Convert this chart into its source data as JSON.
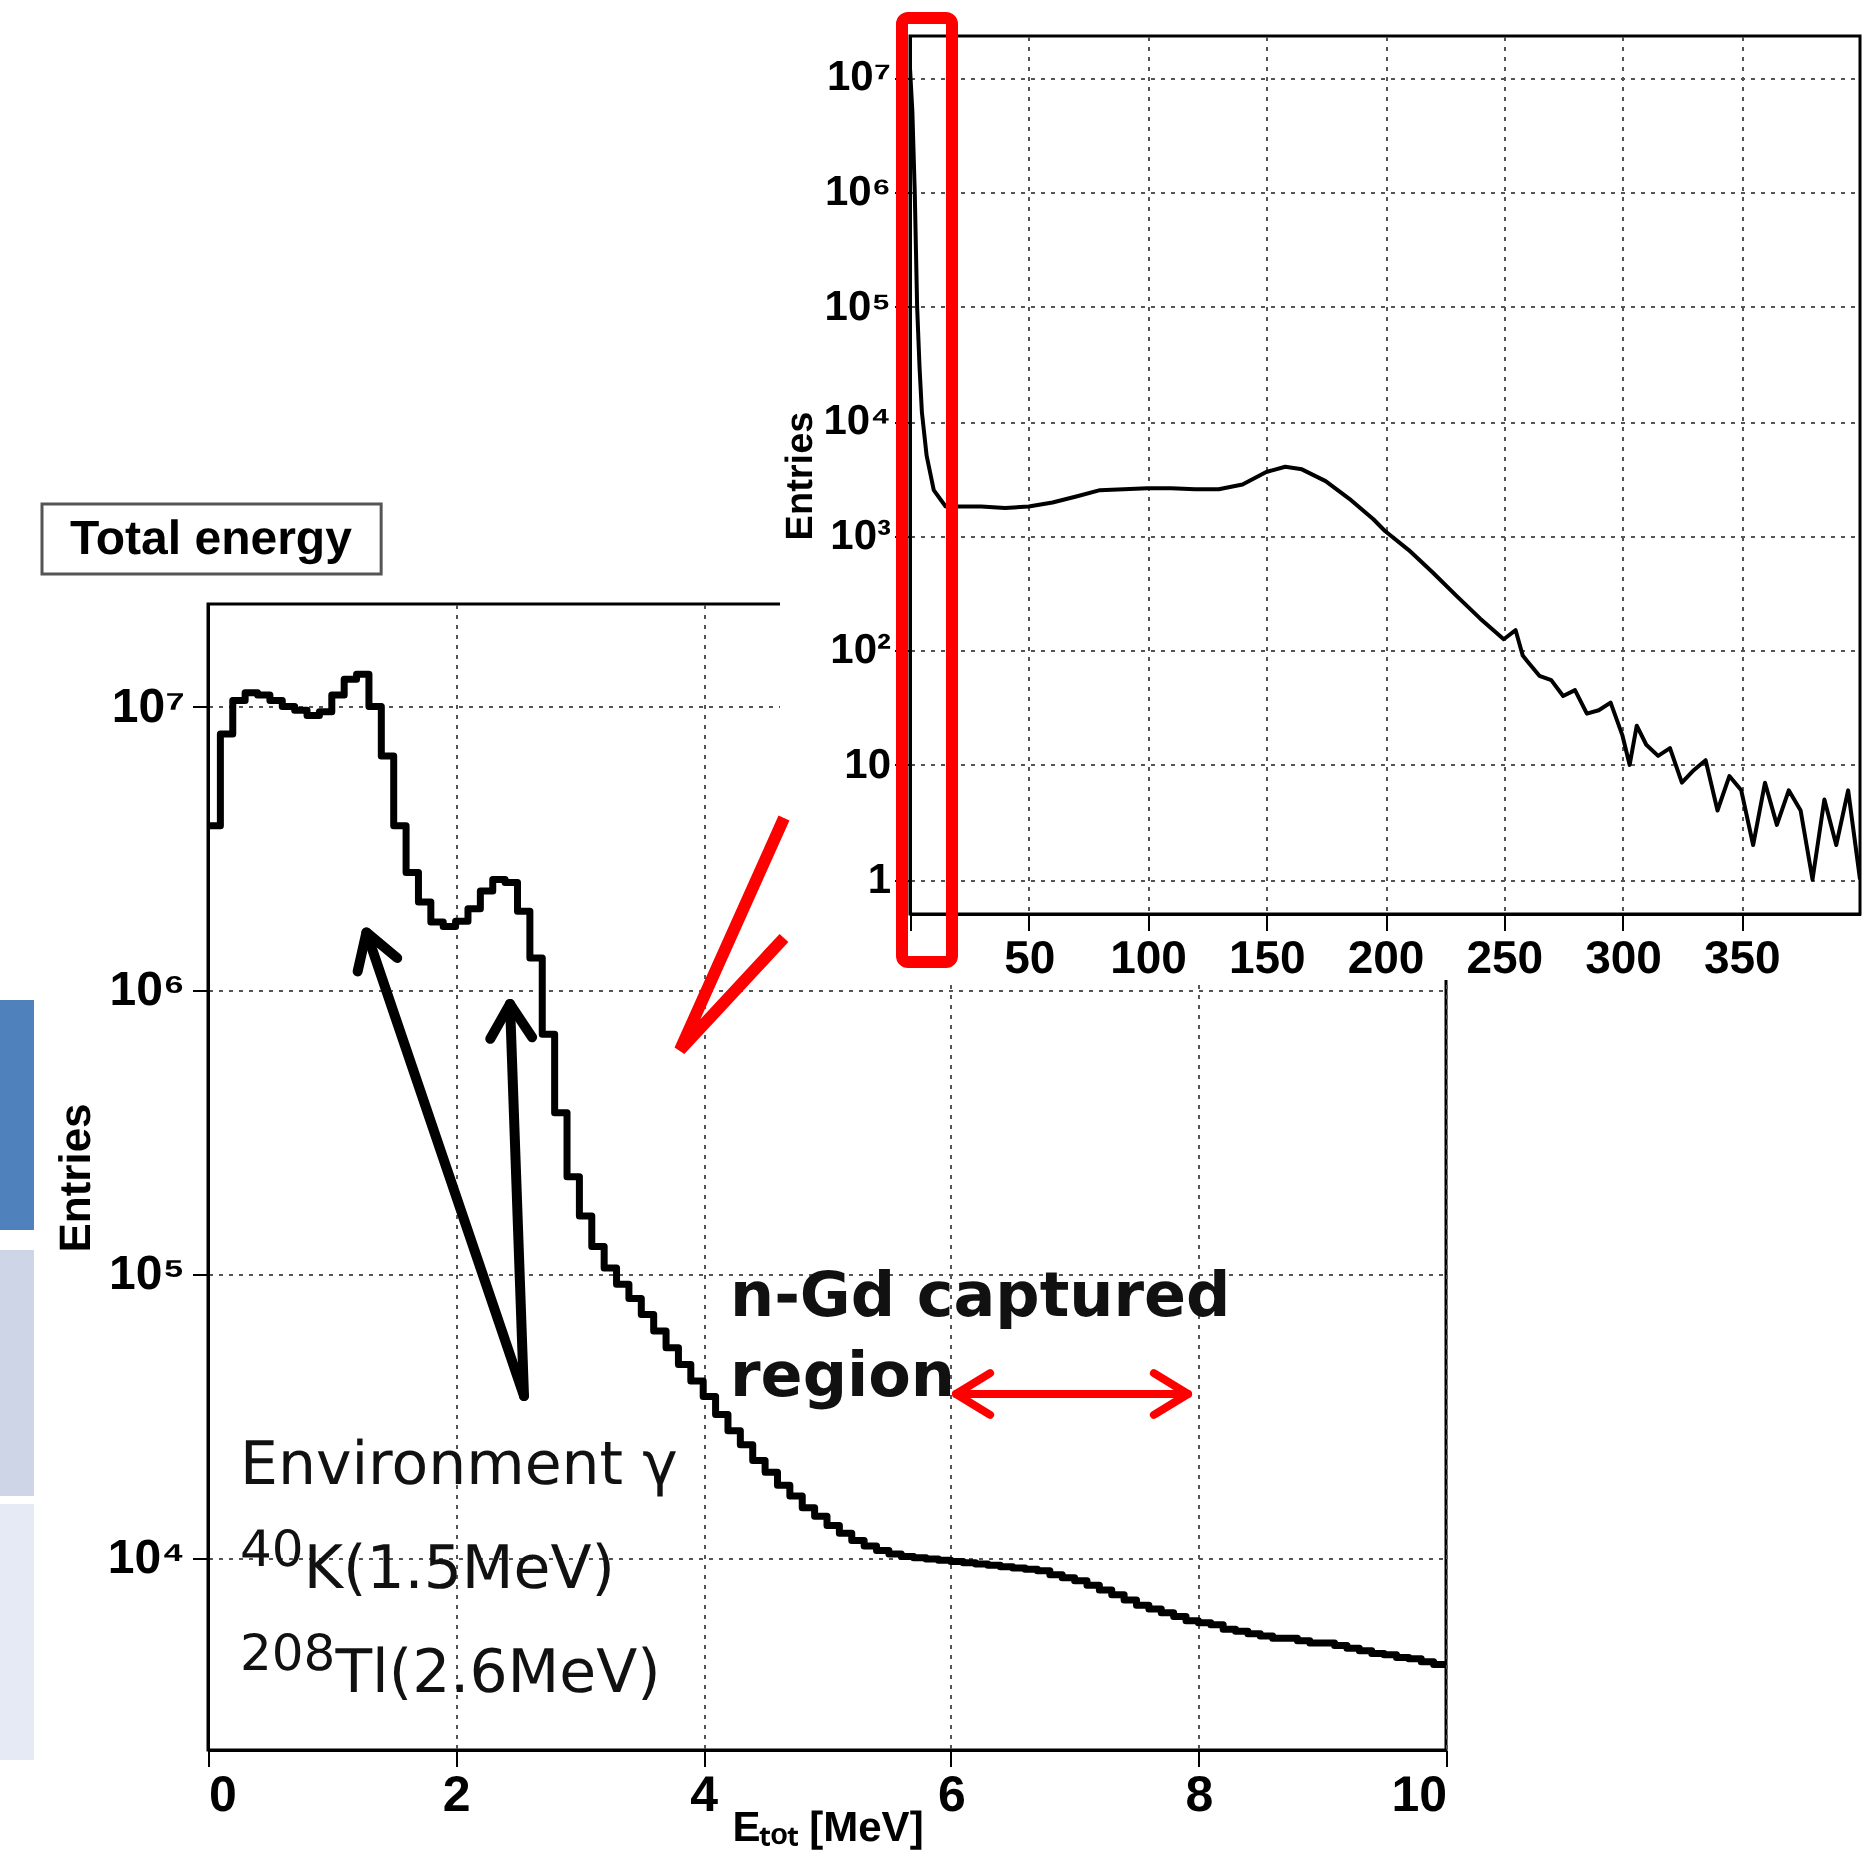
{
  "chart_data": [
    {
      "type": "histogram",
      "title": "Total energy",
      "xlabel": "Eₜₒₜ [MeV]",
      "ylabel": "Entries",
      "color": "#000000",
      "bins": [
        0,
        0.1,
        0.2,
        0.3,
        0.4,
        0.5,
        0.6,
        0.7,
        0.8,
        0.9,
        1,
        1.1,
        1.2,
        1.3,
        1.4,
        1.5,
        1.6,
        1.7,
        1.8,
        1.9,
        2,
        2.1,
        2.2,
        2.3,
        2.4,
        2.5,
        2.6,
        2.7,
        2.8,
        2.9,
        3,
        3.1,
        3.2,
        3.3,
        3.4,
        3.5,
        3.6,
        3.7,
        3.8,
        3.9,
        4,
        4.1,
        4.2,
        4.3,
        4.4,
        4.5,
        4.6,
        4.7,
        4.8,
        4.9,
        5,
        5.1,
        5.2,
        5.3,
        5.4,
        5.5,
        5.6,
        5.7,
        5.8,
        5.9,
        6,
        6.1,
        6.2,
        6.3,
        6.4,
        6.5,
        6.6,
        6.7,
        6.8,
        6.9,
        7,
        7.1,
        7.2,
        7.3,
        7.4,
        7.5,
        7.6,
        7.7,
        7.8,
        7.9,
        8,
        8.1,
        8.2,
        8.3,
        8.4,
        8.5,
        8.6,
        8.7,
        8.8,
        8.9,
        9,
        9.1,
        9.2,
        9.3,
        9.4,
        9.5,
        9.6,
        9.7,
        9.8,
        9.9,
        10
      ],
      "values": [
        3800000.0,
        8000000.0,
        10500000.0,
        11200000.0,
        11000000.0,
        10500000.0,
        10000000.0,
        9700000.0,
        9300000.0,
        9600000.0,
        11000000.0,
        12500000.0,
        13000000.0,
        10000000.0,
        6700000.0,
        3800000.0,
        2600000.0,
        2050000.0,
        1740000.0,
        1680000.0,
        1750000.0,
        1940000.0,
        2240000.0,
        2460000.0,
        2400000.0,
        1900000.0,
        1300000.0,
        700000.0,
        370000.0,
        220000.0,
        160000.0,
        125000.0,
        105000.0,
        92000.0,
        82000.0,
        72000.0,
        63000.0,
        55000.0,
        48000.0,
        42000.0,
        37000.0,
        32000.0,
        28000.0,
        25000.0,
        22000.0,
        20000.0,
        18000.0,
        16500.0,
        15000.0,
        14000.0,
        13000.0,
        12200.0,
        11500.0,
        11000.0,
        10600.0,
        10300.0,
        10100.0,
        10000.0,
        9900.0,
        9800.0,
        9700.0,
        9600.0,
        9500.0,
        9400.0,
        9300.0,
        9200.0,
        9100.0,
        9000.0,
        8700.0,
        8500.0,
        8300.0,
        8000.0,
        7700.0,
        7400.0,
        7100.0,
        6800.0,
        6600.0,
        6400.0,
        6200.0,
        6000.0,
        5900.0,
        5800.0,
        5600.0,
        5500.0,
        5400.0,
        5300.0,
        5200.0,
        5200.0,
        5100.0,
        5000.0,
        5000.0,
        4900.0,
        4800.0,
        4700.0,
        4600.0,
        4550.0,
        4450.0,
        4400.0,
        4300.0,
        4200.0
      ],
      "xlim": [
        0,
        10
      ],
      "xticks": [
        0,
        2,
        4,
        6,
        8,
        10
      ],
      "ylim": [
        2100,
        23000000.0
      ],
      "yticks": [
        {
          "value": 10000,
          "label": "10⁴"
        },
        {
          "value": 100000,
          "label": "10⁵"
        },
        {
          "value": 1000000,
          "label": "10⁶"
        },
        {
          "value": 10000000,
          "label": "10⁷"
        }
      ],
      "log": true,
      "grid": true,
      "annotations": [
        {
          "text": "Environment γ",
          "x": 1.28,
          "y": 1600000.0
        },
        "$^{40}$K(1.5MeV)",
        "$^{208}$Tl(2.6MeV)",
        "n-Gd captured region"
      ]
    },
    {
      "type": "line",
      "ylabel": "Entries",
      "color": "#000000",
      "x": [
        0,
        1,
        2,
        3,
        4,
        5,
        7,
        10,
        15,
        20,
        30,
        40,
        50,
        60,
        70,
        80,
        90,
        100,
        110,
        120,
        130,
        140,
        150,
        158,
        165,
        175,
        185,
        195,
        200,
        210,
        220,
        230,
        240,
        250,
        255,
        258,
        260,
        265,
        270,
        275,
        280,
        285,
        290,
        295,
        300,
        303,
        306,
        310,
        315,
        320,
        325,
        330,
        335,
        340,
        345,
        350,
        355,
        360,
        365,
        370,
        375,
        380,
        385,
        390,
        395,
        400
      ],
      "values": [
        12000000.0,
        5000000.0,
        1000000.0,
        100000.0,
        30000.0,
        12000.0,
        5000.0,
        2500.0,
        1800.0,
        1800.0,
        1800.0,
        1750.0,
        1800.0,
        1950.0,
        2200.0,
        2500.0,
        2550.0,
        2600.0,
        2600.0,
        2550.0,
        2550.0,
        2800.0,
        3600.0,
        4000.0,
        3800.0,
        3000.0,
        2100.0,
        1400.0,
        1100.0,
        750,
        480,
        300,
        190,
        125,
        150,
        90,
        80,
        60,
        55,
        40,
        45,
        28,
        30,
        35,
        18,
        10,
        22,
        15,
        12,
        14,
        7,
        9,
        11,
        4,
        8,
        6,
        2,
        7,
        3,
        6,
        4,
        1,
        5,
        2,
        6,
        1
      ],
      "xlim": [
        0,
        400
      ],
      "xticks": [
        {
          "value": 0,
          "label": null
        },
        50,
        100,
        150,
        200,
        250,
        300,
        350
      ],
      "ylim": [
        0.5,
        23000000.0
      ],
      "yticks": [
        1,
        10,
        {
          "value": 100,
          "label": "10²"
        },
        {
          "value": 1000,
          "label": "10³"
        },
        {
          "value": 10000,
          "label": "10⁴"
        },
        {
          "value": 100000,
          "label": "10⁵"
        },
        {
          "value": 1000000,
          "label": "10⁶"
        },
        {
          "value": 10000000,
          "label": "10⁷"
        }
      ],
      "log": true,
      "grid": true
    }
  ]
}
